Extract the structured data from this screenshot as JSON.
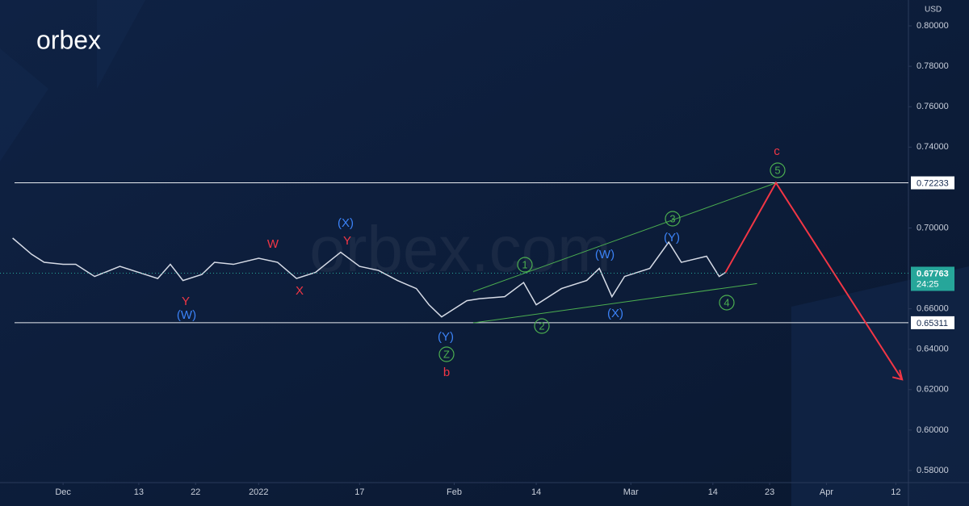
{
  "chart_data": {
    "type": "line",
    "logo": "orbex",
    "watermark": "orbex.com",
    "currency": "USD",
    "xlim": [
      -10,
      134
    ],
    "ylim": [
      0.574,
      0.8128
    ],
    "xticks": [
      {
        "value": 0,
        "label": "Dec"
      },
      {
        "value": 12,
        "label": "13"
      },
      {
        "value": 21,
        "label": "22"
      },
      {
        "value": 31,
        "label": "2022"
      },
      {
        "value": 47,
        "label": "17"
      },
      {
        "value": 62,
        "label": "Feb"
      },
      {
        "value": 75,
        "label": "14"
      },
      {
        "value": 90,
        "label": "Mar"
      },
      {
        "value": 103,
        "label": "14"
      },
      {
        "value": 112,
        "label": "23"
      },
      {
        "value": 121,
        "label": "Apr"
      },
      {
        "value": 132,
        "label": "12"
      }
    ],
    "yticks": [
      {
        "value": 0.58,
        "label": "0.58000"
      },
      {
        "value": 0.6,
        "label": "0.60000"
      },
      {
        "value": 0.62,
        "label": "0.62000"
      },
      {
        "value": 0.64,
        "label": "0.64000"
      },
      {
        "value": 0.66,
        "label": "0.66000"
      },
      {
        "value": 0.7,
        "label": "0.70000"
      },
      {
        "value": 0.74,
        "label": "0.74000"
      },
      {
        "value": 0.76,
        "label": "0.76000"
      },
      {
        "value": 0.78,
        "label": "0.78000"
      },
      {
        "value": 0.8,
        "label": "0.80000"
      }
    ],
    "x": [
      -8,
      -5,
      -3,
      0,
      2,
      5,
      9,
      13,
      15,
      17,
      19,
      22,
      24,
      27,
      31,
      34,
      37,
      40,
      42,
      44,
      47,
      50,
      53,
      56,
      58,
      60,
      62,
      64,
      66,
      70,
      73,
      75,
      79,
      83,
      85,
      87,
      89,
      93,
      96,
      98,
      102,
      104,
      105
    ],
    "series": [
      {
        "color": "#d6dbe6",
        "values": [
          0.695,
          0.687,
          0.683,
          0.682,
          0.682,
          0.676,
          0.681,
          0.677,
          0.675,
          0.682,
          0.674,
          0.677,
          0.683,
          0.682,
          0.685,
          0.683,
          0.675,
          0.678,
          0.683,
          0.688,
          0.681,
          0.679,
          0.674,
          0.67,
          0.662,
          0.656,
          0.66,
          0.664,
          0.665,
          0.666,
          0.673,
          0.662,
          0.67,
          0.674,
          0.68,
          0.666,
          0.676,
          0.68,
          0.693,
          0.683,
          0.686,
          0.676,
          0.678
        ]
      }
    ],
    "projection": {
      "color": "#f23645",
      "x": [
        105,
        113,
        133
      ],
      "values": [
        0.678,
        0.72233,
        0.625
      ]
    },
    "channel": [
      {
        "color": "#4caf50",
        "x": [
          65,
          113
        ],
        "values": [
          0.6685,
          0.7223
        ]
      },
      {
        "color": "#4caf50",
        "x": [
          65,
          110
        ],
        "values": [
          0.653,
          0.6725
        ]
      }
    ],
    "levels": [
      0.72233,
      0.65311
    ],
    "last_price": {
      "value": 0.67763,
      "countdown": "24:25"
    },
    "annotations": [
      "c",
      "W",
      "Y",
      "X",
      "Y",
      "b",
      "(X)",
      "(W)",
      "(Y)",
      "(W)",
      "(X)",
      "(Y)",
      "5",
      "3",
      "1",
      "2",
      "4",
      "Z"
    ]
  }
}
